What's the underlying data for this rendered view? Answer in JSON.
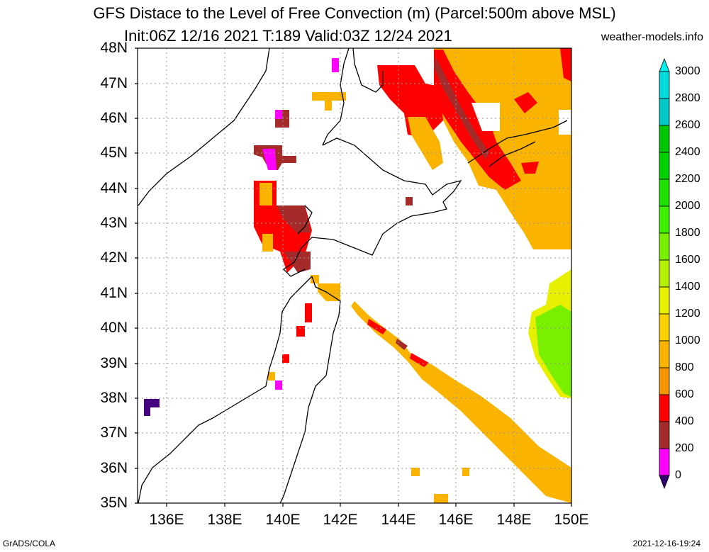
{
  "title_line1": "GFS Distace to the Level of Free Convection (m) (Parcel:500m above MSL)",
  "title_line2": "Init:06Z 12/16 2021 T:189 Valid:03Z 12/24 2021",
  "site": "weather-models.info",
  "footer_left": "GrADS/COLA",
  "footer_right": "2021-12-16-19:24",
  "lat_labels": [
    "48N",
    "47N",
    "46N",
    "45N",
    "44N",
    "43N",
    "42N",
    "41N",
    "40N",
    "39N",
    "38N",
    "37N",
    "36N",
    "35N"
  ],
  "lon_labels": [
    "136E",
    "138E",
    "140E",
    "142E",
    "144E",
    "146E",
    "148E",
    "150E"
  ],
  "colorbar": {
    "labels": [
      "3000",
      "2800",
      "2600",
      "2400",
      "2200",
      "2000",
      "1800",
      "1600",
      "1400",
      "1200",
      "1000",
      "800",
      "600",
      "400",
      "200",
      "0"
    ],
    "colors": [
      "#00dcdc",
      "#00c8c8",
      "#00c800",
      "#00d200",
      "#1ee100",
      "#3cf000",
      "#78f000",
      "#b4f000",
      "#e6f000",
      "#fad200",
      "#fab400",
      "#f59600",
      "#ff0000",
      "#a52a2a",
      "#ff00ff",
      "#460082"
    ],
    "arrow_top_color": "#00f0f0",
    "arrow_bottom_color": "#32006e"
  },
  "map": {
    "lon_range": [
      135,
      150
    ],
    "lat_range": [
      35,
      48
    ]
  }
}
